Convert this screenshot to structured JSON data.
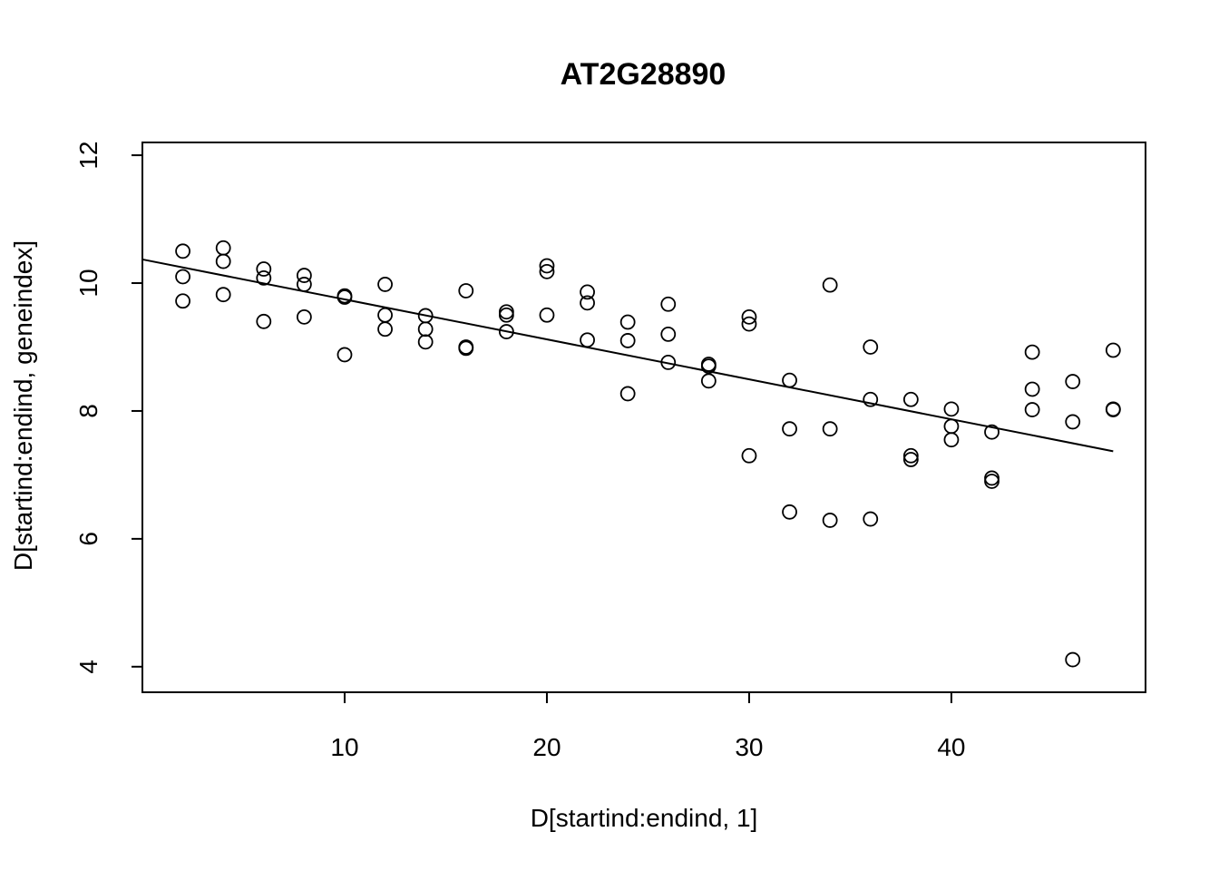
{
  "chart_data": {
    "type": "scatter",
    "title": "AT2G28890",
    "xlabel": "D[startind:endind, 1]",
    "ylabel": "D[startind:endind, geneindex]",
    "xlim": [
      0,
      49.6
    ],
    "ylim": [
      3.6,
      12.2
    ],
    "x_ticks": [
      10,
      20,
      30,
      40
    ],
    "y_ticks": [
      4,
      6,
      8,
      10,
      12
    ],
    "grid": false,
    "legend": "none",
    "regression_line": {
      "x": [
        0,
        48
      ],
      "y": [
        10.37,
        7.37
      ]
    },
    "points": [
      {
        "x": 2,
        "y": 10.5
      },
      {
        "x": 2,
        "y": 10.1
      },
      {
        "x": 2,
        "y": 9.72
      },
      {
        "x": 4,
        "y": 10.55
      },
      {
        "x": 4,
        "y": 10.34
      },
      {
        "x": 4,
        "y": 9.82
      },
      {
        "x": 6,
        "y": 10.22
      },
      {
        "x": 6,
        "y": 10.08
      },
      {
        "x": 6,
        "y": 9.4
      },
      {
        "x": 8,
        "y": 10.12
      },
      {
        "x": 8,
        "y": 9.98
      },
      {
        "x": 8,
        "y": 9.47
      },
      {
        "x": 10,
        "y": 9.8
      },
      {
        "x": 10,
        "y": 9.78
      },
      {
        "x": 10,
        "y": 8.88
      },
      {
        "x": 12,
        "y": 9.98
      },
      {
        "x": 12,
        "y": 9.5
      },
      {
        "x": 12,
        "y": 9.28
      },
      {
        "x": 14,
        "y": 9.49
      },
      {
        "x": 14,
        "y": 9.28
      },
      {
        "x": 14,
        "y": 9.08
      },
      {
        "x": 16,
        "y": 9.88
      },
      {
        "x": 16,
        "y": 9.0
      },
      {
        "x": 16,
        "y": 8.98
      },
      {
        "x": 18,
        "y": 9.55
      },
      {
        "x": 18,
        "y": 9.5
      },
      {
        "x": 18,
        "y": 9.24
      },
      {
        "x": 20,
        "y": 10.27
      },
      {
        "x": 20,
        "y": 10.18
      },
      {
        "x": 20,
        "y": 9.5
      },
      {
        "x": 22,
        "y": 9.86
      },
      {
        "x": 22,
        "y": 9.69
      },
      {
        "x": 22,
        "y": 9.11
      },
      {
        "x": 24,
        "y": 9.39
      },
      {
        "x": 24,
        "y": 9.1
      },
      {
        "x": 24,
        "y": 8.27
      },
      {
        "x": 26,
        "y": 9.67
      },
      {
        "x": 26,
        "y": 9.2
      },
      {
        "x": 26,
        "y": 8.76
      },
      {
        "x": 28,
        "y": 8.73
      },
      {
        "x": 28,
        "y": 8.7
      },
      {
        "x": 28,
        "y": 8.47
      },
      {
        "x": 30,
        "y": 9.47
      },
      {
        "x": 30,
        "y": 9.36
      },
      {
        "x": 30,
        "y": 7.3
      },
      {
        "x": 32,
        "y": 8.48
      },
      {
        "x": 32,
        "y": 7.72
      },
      {
        "x": 32,
        "y": 6.42
      },
      {
        "x": 34,
        "y": 9.97
      },
      {
        "x": 34,
        "y": 7.72
      },
      {
        "x": 34,
        "y": 6.29
      },
      {
        "x": 36,
        "y": 9.0
      },
      {
        "x": 36,
        "y": 8.18
      },
      {
        "x": 36,
        "y": 6.31
      },
      {
        "x": 38,
        "y": 8.18
      },
      {
        "x": 38,
        "y": 7.3
      },
      {
        "x": 38,
        "y": 7.24
      },
      {
        "x": 40,
        "y": 8.03
      },
      {
        "x": 40,
        "y": 7.76
      },
      {
        "x": 40,
        "y": 7.55
      },
      {
        "x": 42,
        "y": 7.67
      },
      {
        "x": 42,
        "y": 6.95
      },
      {
        "x": 42,
        "y": 6.9
      },
      {
        "x": 44,
        "y": 8.92
      },
      {
        "x": 44,
        "y": 8.34
      },
      {
        "x": 44,
        "y": 8.02
      },
      {
        "x": 46,
        "y": 8.46
      },
      {
        "x": 46,
        "y": 7.83
      },
      {
        "x": 46,
        "y": 4.11
      },
      {
        "x": 48,
        "y": 8.95
      },
      {
        "x": 48,
        "y": 8.03
      },
      {
        "x": 48,
        "y": 8.02
      }
    ]
  }
}
